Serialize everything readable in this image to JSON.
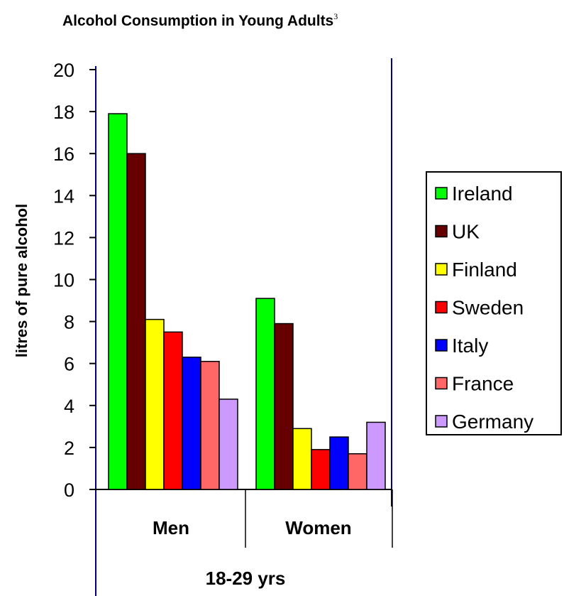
{
  "chart_data": {
    "type": "bar",
    "title": "Alcohol Consumption in Young Adults",
    "title_superscript": "3",
    "ylabel": "litres of pure alcohol",
    "xlabel": "18-29 yrs",
    "categories": [
      "Men",
      "Women"
    ],
    "ylim": [
      0,
      20
    ],
    "yticks": [
      "0",
      "2",
      "4",
      "6",
      "8",
      "10",
      "12",
      "14",
      "16",
      "18",
      "20"
    ],
    "grid": false,
    "legend_position": "right",
    "series": [
      {
        "name": "Ireland",
        "color": "#00ff00",
        "values": [
          17.9,
          9.1
        ]
      },
      {
        "name": "UK",
        "color": "#660000",
        "values": [
          16.0,
          7.9
        ]
      },
      {
        "name": "Finland",
        "color": "#ffff00",
        "values": [
          8.1,
          2.9
        ]
      },
      {
        "name": "Sweden",
        "color": "#ff0000",
        "values": [
          7.5,
          1.9
        ]
      },
      {
        "name": "Italy",
        "color": "#0000ff",
        "values": [
          6.3,
          2.5
        ]
      },
      {
        "name": "France",
        "color": "#ff6666",
        "values": [
          6.1,
          1.7
        ]
      },
      {
        "name": "Germany",
        "color": "#cc99ff",
        "values": [
          4.3,
          3.2
        ]
      }
    ]
  }
}
